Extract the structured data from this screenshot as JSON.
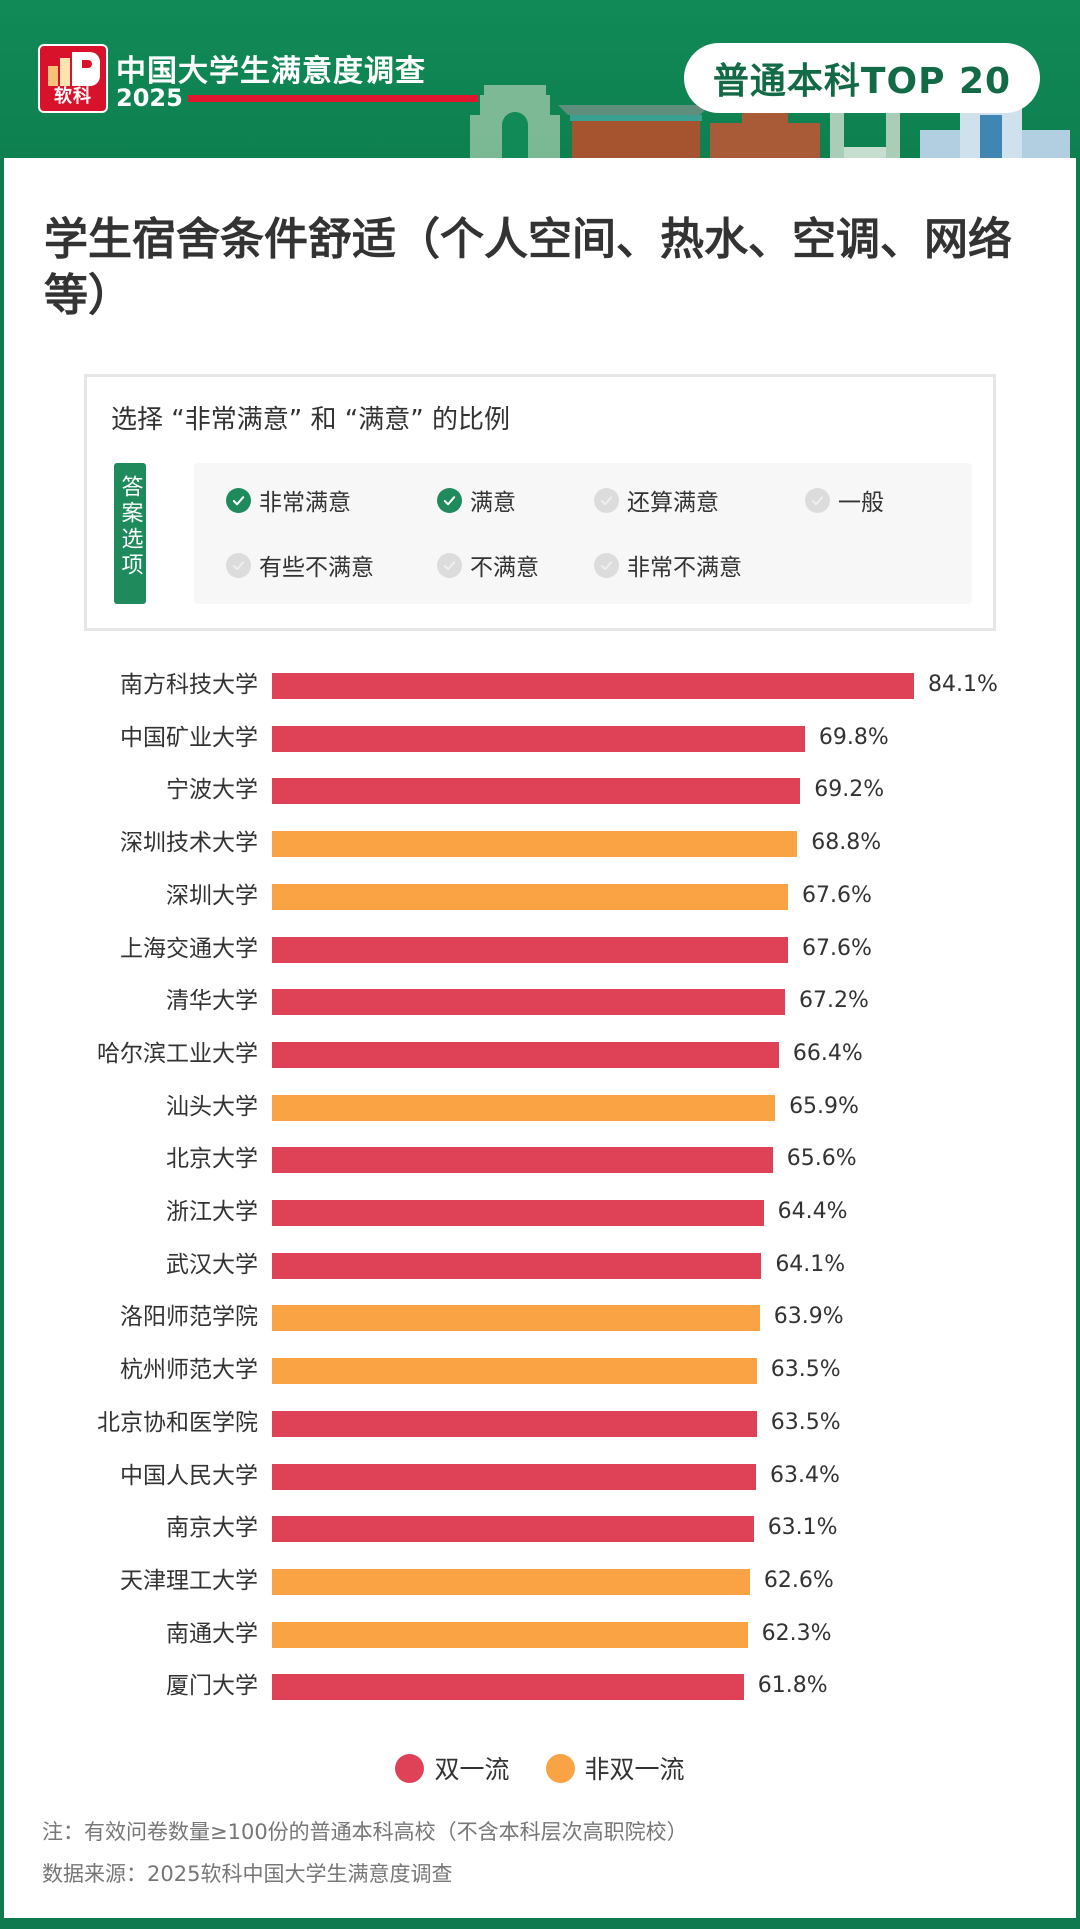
{
  "header": {
    "logo_text": "软科",
    "survey_title": "中国大学生满意度调查",
    "year": "2025",
    "badge": "普通本科TOP 20"
  },
  "page_title": "学生宿舍条件舒适（个人空间、热水、空调、网络等）",
  "options_box": {
    "title": "选择 “非常满意” 和 “满意” 的比例",
    "tag": "答案选项",
    "options": [
      {
        "label": "非常满意",
        "selected": true
      },
      {
        "label": "满意",
        "selected": true
      },
      {
        "label": "还算满意",
        "selected": false
      },
      {
        "label": "一般",
        "selected": false
      },
      {
        "label": "有些不满意",
        "selected": false
      },
      {
        "label": "不满意",
        "selected": false
      },
      {
        "label": "非常不满意",
        "selected": false
      }
    ]
  },
  "colors": {
    "double_first_class": "#df4156",
    "non_double_first_class": "#f9a345",
    "brand_green": "#1f8a5c",
    "header_bg": "#118a57",
    "logo_red": "#d8122a"
  },
  "legend": [
    {
      "label": "双一流",
      "color": "#df4156"
    },
    {
      "label": "非双一流",
      "color": "#f9a345"
    }
  ],
  "notes": {
    "note": "注：有效问卷数量≥100份的普通本科高校（不含本科层次高职院校）",
    "source": "数据来源：2025软科中国大学生满意度调查"
  },
  "chart_data": {
    "type": "bar",
    "orientation": "horizontal",
    "title": "学生宿舍条件舒适（个人空间、热水、空调、网络等）",
    "subtitle": "选择 “非常满意” 和 “满意” 的比例",
    "xlabel": "",
    "ylabel": "",
    "value_suffix": "%",
    "grid": false,
    "legend_position": "bottom",
    "categories": [
      "南方科技大学",
      "中国矿业大学",
      "宁波大学",
      "深圳技术大学",
      "深圳大学",
      "上海交通大学",
      "清华大学",
      "哈尔滨工业大学",
      "汕头大学",
      "北京大学",
      "浙江大学",
      "武汉大学",
      "洛阳师范学院",
      "杭州师范大学",
      "北京协和医学院",
      "中国人民大学",
      "南京大学",
      "天津理工大学",
      "南通大学",
      "厦门大学"
    ],
    "values": [
      84.1,
      69.8,
      69.2,
      68.8,
      67.6,
      67.6,
      67.2,
      66.4,
      65.9,
      65.6,
      64.4,
      64.1,
      63.9,
      63.5,
      63.5,
      63.4,
      63.1,
      62.6,
      62.3,
      61.8
    ],
    "value_labels": [
      "84.1%",
      "69.8%",
      "69.2%",
      "68.8%",
      "67.6%",
      "67.6%",
      "67.2%",
      "66.4%",
      "65.9%",
      "65.6%",
      "64.4%",
      "64.1%",
      "63.9%",
      "63.5%",
      "63.5%",
      "63.4%",
      "63.1%",
      "62.6%",
      "62.3%",
      "61.8%"
    ],
    "groups": [
      "双一流",
      "双一流",
      "双一流",
      "非双一流",
      "非双一流",
      "双一流",
      "双一流",
      "双一流",
      "非双一流",
      "双一流",
      "双一流",
      "双一流",
      "非双一流",
      "非双一流",
      "双一流",
      "双一流",
      "双一流",
      "非双一流",
      "非双一流",
      "双一流"
    ],
    "series": [
      {
        "name": "双一流",
        "color": "#df4156"
      },
      {
        "name": "非双一流",
        "color": "#f9a345"
      }
    ]
  }
}
